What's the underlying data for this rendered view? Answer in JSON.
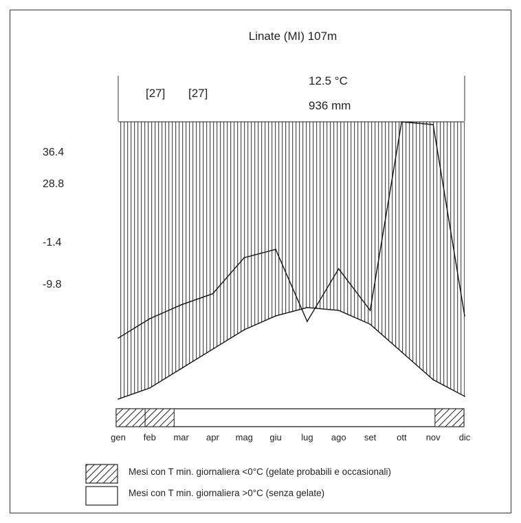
{
  "chart_data": {
    "type": "area",
    "title": "Linate (MI)  107m",
    "annual_temperature": "12.5 °C",
    "annual_precipitation": "936 mm",
    "years_temperature": "[27]",
    "years_precipitation": "[27]",
    "left_labels": [
      "36.4",
      "28.8",
      "-1.4",
      "-9.8"
    ],
    "categories": [
      "gen",
      "feb",
      "mar",
      "apr",
      "mag",
      "giu",
      "lug",
      "ago",
      "set",
      "ott",
      "nov",
      "dic"
    ],
    "series": [
      {
        "values": [
          23,
          30,
          35,
          39,
          52,
          55,
          29,
          48,
          33,
          101,
          100,
          31
        ]
      },
      {
        "values": [
          1,
          5,
          12,
          19,
          26,
          31,
          34,
          33,
          28,
          18,
          8,
          2
        ]
      }
    ],
    "ylim": [
      0,
      101
    ],
    "frost_months": [
      true,
      true,
      false,
      false,
      false,
      false,
      false,
      false,
      false,
      false,
      false,
      true
    ],
    "legend": [
      {
        "type": "hatched",
        "label": "Mesi con T min. giornaliera <0°C (gelate probabili e occasionali)"
      },
      {
        "type": "empty",
        "label": "Mesi con T min. giornaliera >0°C (senza gelate)"
      }
    ]
  }
}
